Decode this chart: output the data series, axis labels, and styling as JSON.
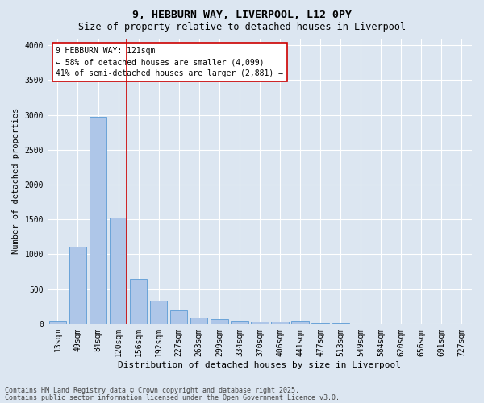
{
  "title1": "9, HEBBURN WAY, LIVERPOOL, L12 0PY",
  "title2": "Size of property relative to detached houses in Liverpool",
  "xlabel": "Distribution of detached houses by size in Liverpool",
  "ylabel": "Number of detached properties",
  "categories": [
    "13sqm",
    "49sqm",
    "84sqm",
    "120sqm",
    "156sqm",
    "192sqm",
    "227sqm",
    "263sqm",
    "299sqm",
    "334sqm",
    "370sqm",
    "406sqm",
    "441sqm",
    "477sqm",
    "513sqm",
    "549sqm",
    "584sqm",
    "620sqm",
    "656sqm",
    "691sqm",
    "727sqm"
  ],
  "values": [
    50,
    1105,
    2975,
    1525,
    650,
    330,
    190,
    85,
    70,
    50,
    35,
    30,
    45,
    5,
    5,
    3,
    2,
    1,
    1,
    1,
    1
  ],
  "bar_color": "#aec6e8",
  "bar_edge_color": "#5b9bd5",
  "background_color": "#dce6f1",
  "plot_bg_color": "#dce6f1",
  "grid_color": "#ffffff",
  "vline_color": "#cc0000",
  "annotation_text": "9 HEBBURN WAY: 121sqm\n← 58% of detached houses are smaller (4,099)\n41% of semi-detached houses are larger (2,881) →",
  "annotation_box_color": "#cc0000",
  "ylim": [
    0,
    4100
  ],
  "yticks": [
    0,
    500,
    1000,
    1500,
    2000,
    2500,
    3000,
    3500,
    4000
  ],
  "footer1": "Contains HM Land Registry data © Crown copyright and database right 2025.",
  "footer2": "Contains public sector information licensed under the Open Government Licence v3.0.",
  "title1_fontsize": 9.5,
  "title2_fontsize": 8.5,
  "xlabel_fontsize": 8,
  "ylabel_fontsize": 7.5,
  "tick_fontsize": 7,
  "annotation_fontsize": 7,
  "footer_fontsize": 6
}
